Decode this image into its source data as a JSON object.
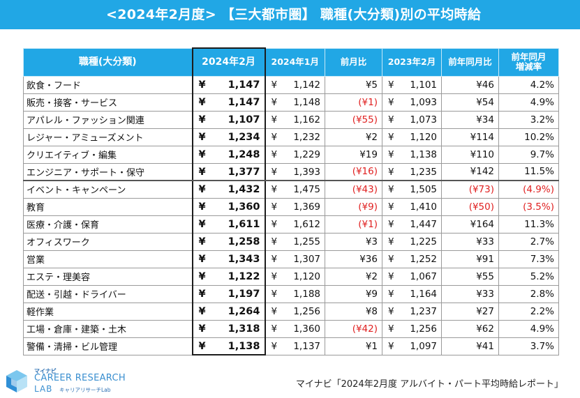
{
  "title": "<2024年2月度> 【三大都市圏】 職種(大分類)別の平均時給",
  "headers": [
    "職種(大分類)",
    "2024年2月",
    "2024年1月",
    "前月比",
    "2023年2月",
    "前年同月比",
    "前年同月",
    "増減率"
  ],
  "yen_symbol": "¥",
  "rows": [
    {
      "name": "飲食・フード",
      "cur": "1,147",
      "prev": "1,142",
      "mom": "¥5",
      "ly": "1,101",
      "yoy": "¥46",
      "rate": "4.2%",
      "mom_neg": false,
      "yoy_neg": false,
      "rate_neg": false
    },
    {
      "name": "販売・接客・サービス",
      "cur": "1,147",
      "prev": "1,148",
      "mom": "(¥1)",
      "ly": "1,093",
      "yoy": "¥54",
      "rate": "4.9%",
      "mom_neg": true,
      "yoy_neg": false,
      "rate_neg": false
    },
    {
      "name": "アパレル・ファッション関連",
      "cur": "1,107",
      "prev": "1,162",
      "mom": "(¥55)",
      "ly": "1,073",
      "yoy": "¥34",
      "rate": "3.2%",
      "mom_neg": true,
      "yoy_neg": false,
      "rate_neg": false
    },
    {
      "name": "レジャー・アミューズメント",
      "cur": "1,234",
      "prev": "1,232",
      "mom": "¥2",
      "ly": "1,120",
      "yoy": "¥114",
      "rate": "10.2%",
      "mom_neg": false,
      "yoy_neg": false,
      "rate_neg": false
    },
    {
      "name": "クリエイティブ・編集",
      "cur": "1,248",
      "prev": "1,229",
      "mom": "¥19",
      "ly": "1,138",
      "yoy": "¥110",
      "rate": "9.7%",
      "mom_neg": false,
      "yoy_neg": false,
      "rate_neg": false
    },
    {
      "name": "エンジニア・サポート・保守",
      "cur": "1,377",
      "prev": "1,393",
      "mom": "(¥16)",
      "ly": "1,235",
      "yoy": "¥142",
      "rate": "11.5%",
      "mom_neg": true,
      "yoy_neg": false,
      "rate_neg": false
    },
    {
      "name": "イベント・キャンペーン",
      "cur": "1,432",
      "prev": "1,475",
      "mom": "(¥43)",
      "ly": "1,505",
      "yoy": "(¥73)",
      "rate": "(4.9%)",
      "mom_neg": true,
      "yoy_neg": true,
      "rate_neg": true
    },
    {
      "name": "教育",
      "cur": "1,360",
      "prev": "1,369",
      "mom": "(¥9)",
      "ly": "1,410",
      "yoy": "(¥50)",
      "rate": "(3.5%)",
      "mom_neg": true,
      "yoy_neg": true,
      "rate_neg": true
    },
    {
      "name": "医療・介護・保育",
      "cur": "1,611",
      "prev": "1,612",
      "mom": "(¥1)",
      "ly": "1,447",
      "yoy": "¥164",
      "rate": "11.3%",
      "mom_neg": true,
      "yoy_neg": false,
      "rate_neg": false
    },
    {
      "name": "オフィスワーク",
      "cur": "1,258",
      "prev": "1,255",
      "mom": "¥3",
      "ly": "1,225",
      "yoy": "¥33",
      "rate": "2.7%",
      "mom_neg": false,
      "yoy_neg": false,
      "rate_neg": false
    },
    {
      "name": "営業",
      "cur": "1,343",
      "prev": "1,307",
      "mom": "¥36",
      "ly": "1,252",
      "yoy": "¥91",
      "rate": "7.3%",
      "mom_neg": false,
      "yoy_neg": false,
      "rate_neg": false
    },
    {
      "name": "エステ・理美容",
      "cur": "1,122",
      "prev": "1,120",
      "mom": "¥2",
      "ly": "1,067",
      "yoy": "¥55",
      "rate": "5.2%",
      "mom_neg": false,
      "yoy_neg": false,
      "rate_neg": false
    },
    {
      "name": "配送・引越・ドライバー",
      "cur": "1,197",
      "prev": "1,188",
      "mom": "¥9",
      "ly": "1,164",
      "yoy": "¥33",
      "rate": "2.8%",
      "mom_neg": false,
      "yoy_neg": false,
      "rate_neg": false
    },
    {
      "name": "軽作業",
      "cur": "1,264",
      "prev": "1,256",
      "mom": "¥8",
      "ly": "1,237",
      "yoy": "¥27",
      "rate": "2.2%",
      "mom_neg": false,
      "yoy_neg": false,
      "rate_neg": false
    },
    {
      "name": "工場・倉庫・建築・土木",
      "cur": "1,318",
      "prev": "1,360",
      "mom": "(¥42)",
      "ly": "1,256",
      "yoy": "¥62",
      "rate": "4.9%",
      "mom_neg": true,
      "yoy_neg": false,
      "rate_neg": false
    },
    {
      "name": "警備・清掃・ビル管理",
      "cur": "1,138",
      "prev": "1,137",
      "mom": "¥1",
      "ly": "1,097",
      "yoy": "¥41",
      "rate": "3.7%",
      "mom_neg": false,
      "yoy_neg": false,
      "rate_neg": false
    }
  ],
  "logo": {
    "small": "マイナビ",
    "main": "CAREER RESEARCH",
    "lab": "LAB",
    "sub": "キャリアリサーチLab"
  },
  "source": "マイナビ「2024年2月度 アルバイト・パート平均時給レポート」",
  "colors": {
    "header_blue": "#21a7e5",
    "negative_red": "#e02020"
  }
}
